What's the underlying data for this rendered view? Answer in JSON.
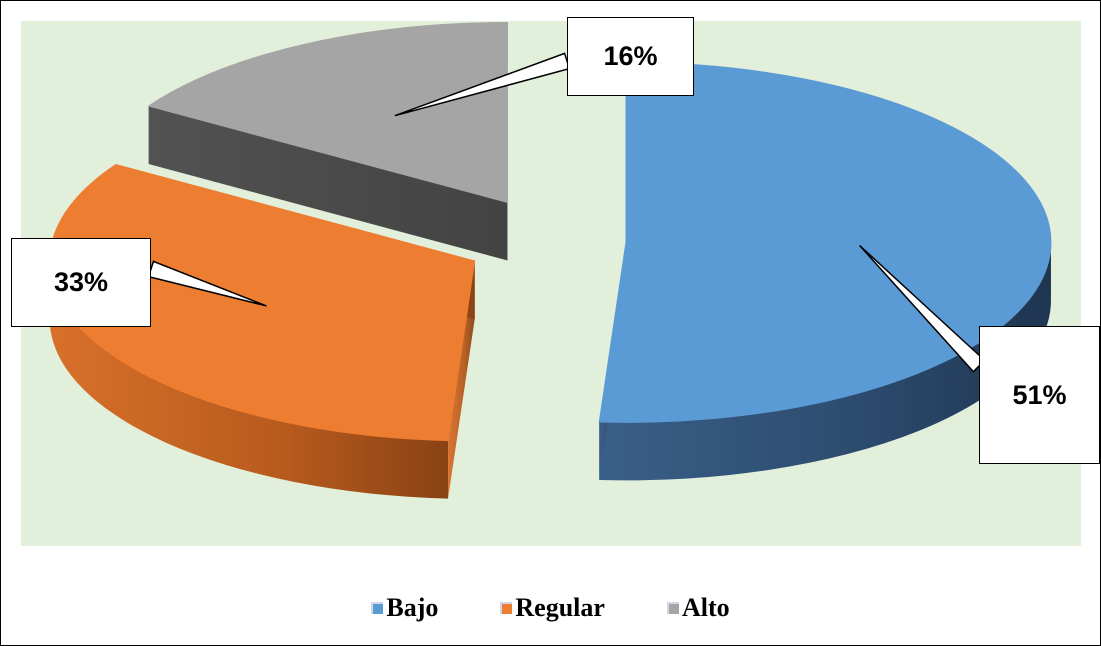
{
  "chart_data": {
    "type": "pie",
    "title": "",
    "categories": [
      "Bajo",
      "Regular",
      "Alto"
    ],
    "values": [
      51,
      33,
      16
    ],
    "data_labels": [
      "51%",
      "33%",
      "16%"
    ],
    "colors": [
      "#5b9bd5",
      "#ed7d31",
      "#a5a5a5"
    ],
    "style": "3d-exploded",
    "plot_background": "#e2efda",
    "legend_position": "bottom"
  },
  "legend": {
    "items": [
      {
        "label": "Bajo",
        "color": "#5b9bd5"
      },
      {
        "label": "Regular",
        "color": "#ed7d31"
      },
      {
        "label": "Alto",
        "color": "#a5a5a5"
      }
    ]
  }
}
